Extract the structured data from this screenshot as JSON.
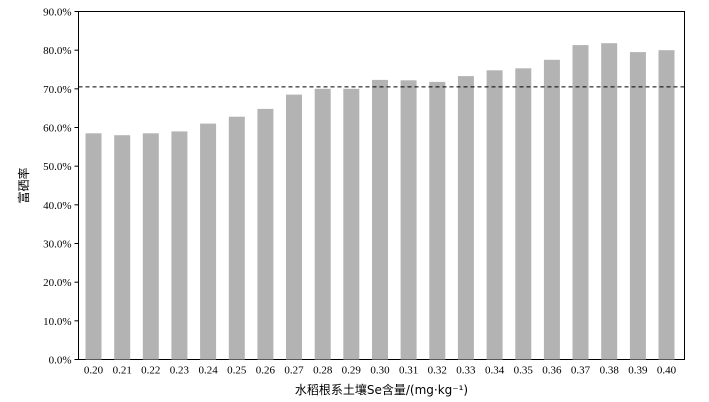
{
  "chart_data": {
    "type": "bar",
    "title": "",
    "xlabel": "水稻根系土壤Se含量/(mg·kg⁻¹)",
    "ylabel": "富硒率",
    "categories": [
      "0.20",
      "0.21",
      "0.22",
      "0.23",
      "0.24",
      "0.25",
      "0.26",
      "0.27",
      "0.28",
      "0.29",
      "0.30",
      "0.31",
      "0.32",
      "0.33",
      "0.34",
      "0.35",
      "0.36",
      "0.37",
      "0.38",
      "0.39",
      "0.40"
    ],
    "values": [
      58.5,
      58.0,
      58.5,
      59.0,
      61.0,
      62.8,
      64.8,
      68.5,
      70.0,
      70.0,
      72.3,
      72.2,
      71.8,
      73.3,
      74.8,
      75.3,
      77.5,
      81.3,
      81.8,
      79.5,
      80.0
    ],
    "ylim": [
      0,
      90
    ],
    "yticks": [
      0,
      10,
      20,
      30,
      40,
      50,
      60,
      70,
      80,
      90
    ],
    "ytick_labels": [
      "0.0%",
      "10.0%",
      "20.0%",
      "30.0%",
      "40.0%",
      "50.0%",
      "60.0%",
      "70.0%",
      "80.0%",
      "90.0%"
    ],
    "reference_line": 70.5,
    "bar_color": "#b3b3b3",
    "grid": false,
    "legend": "none"
  }
}
